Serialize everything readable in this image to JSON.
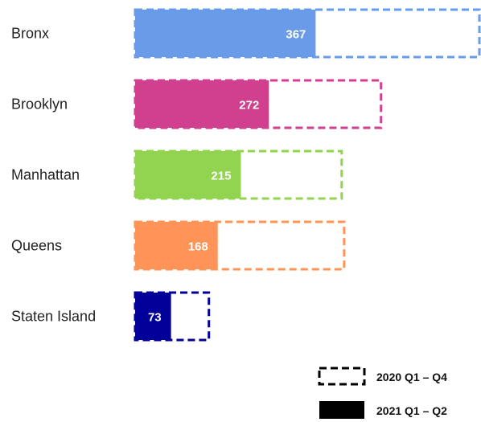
{
  "chart_data": {
    "type": "bar",
    "orientation": "horizontal",
    "categories": [
      "Bronx",
      "Brooklyn",
      "Manhattan",
      "Queens",
      "Staten Island"
    ],
    "series": [
      {
        "name": "2020 Q1 – Q4",
        "style": "dashed-outline",
        "values": [
          700,
          500,
          420,
          425,
          150
        ]
      },
      {
        "name": "2021 Q1 – Q2",
        "style": "solid",
        "values": [
          367,
          272,
          215,
          168,
          73
        ]
      }
    ],
    "colors": [
      "#6a9be8",
      "#d13f8f",
      "#92d350",
      "#fe9458",
      "#030099"
    ],
    "data_labels": [
      "367",
      "272",
      "215",
      "168",
      "73"
    ],
    "xlim": [
      0,
      700
    ],
    "legend_position": "bottom-right",
    "grid": false,
    "legend": {
      "outline_label": "2020 Q1 – Q4",
      "solid_label": "2021 Q1 – Q2",
      "solid_color": "#000000"
    }
  }
}
